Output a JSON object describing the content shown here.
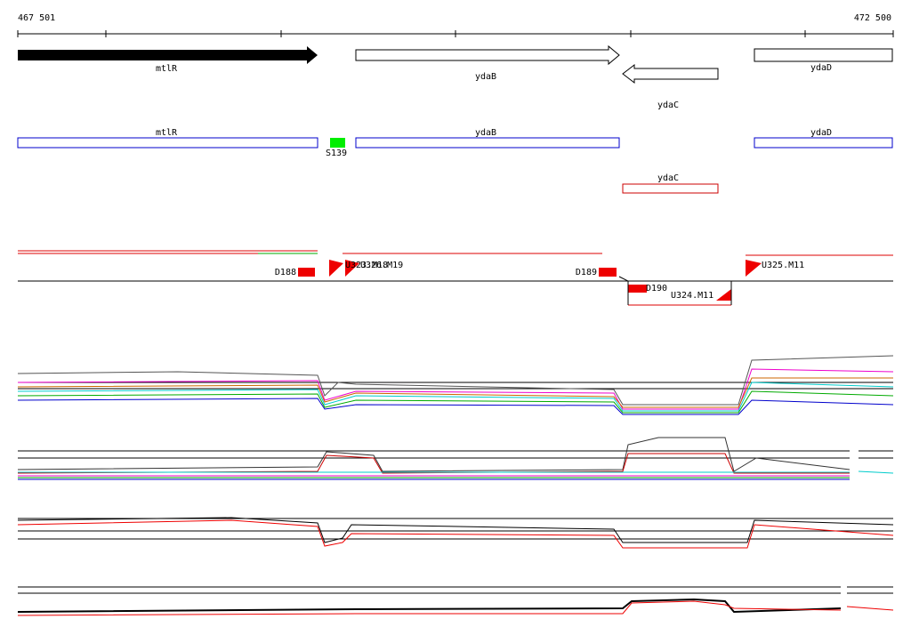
{
  "ruler": {
    "start": "467 501",
    "end": "472 500"
  },
  "genes": [
    "mtlR",
    "ydaB",
    "ydaC",
    "ydaD"
  ],
  "annotations": [
    "mtlR",
    "S139",
    "ydaB",
    "ydaD",
    "ydaC"
  ],
  "features": [
    "D188",
    "U323.M18",
    "U326.M19",
    "D189",
    "D190",
    "U324.M11",
    "U325.M11"
  ]
}
